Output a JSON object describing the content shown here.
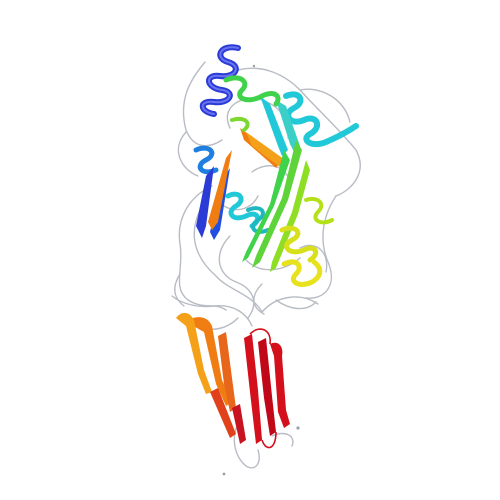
{
  "image": {
    "subject": "protein-ribbon-structure",
    "coloring": "rainbow",
    "palette": {
      "background": "#ffffff",
      "coil": "#b8bcc4",
      "blue": "#2b3bd6",
      "azure": "#1e7fe0",
      "cyan": "#21c8d8",
      "green": "#3fd24a",
      "lime": "#a8e01c",
      "yellow": "#e8e21c",
      "orange": "#f07d12",
      "red": "#d4101c"
    }
  }
}
